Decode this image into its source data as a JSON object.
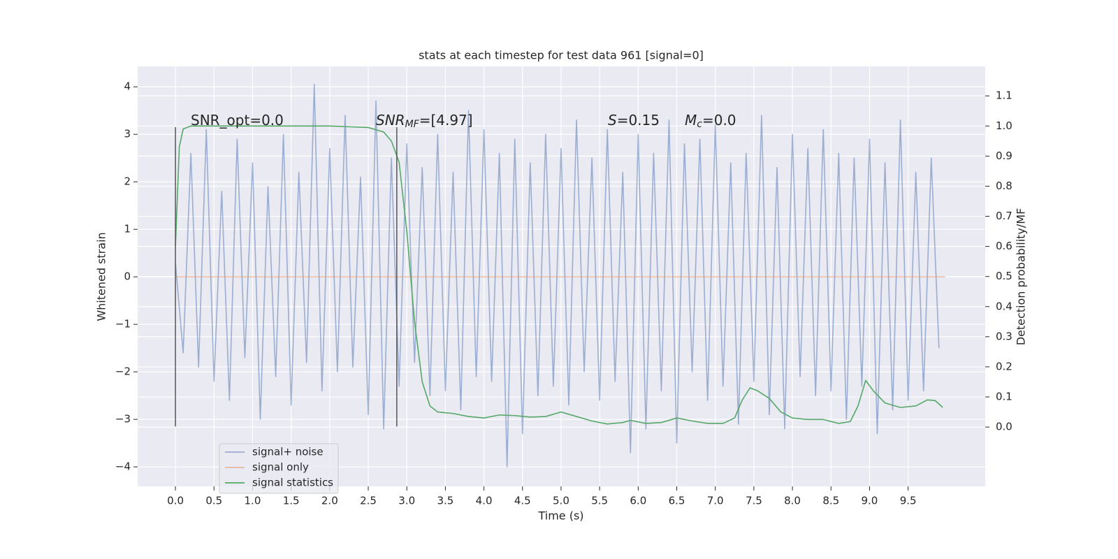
{
  "chart_data": {
    "type": "line",
    "title": "stats at each timestep for test data 961 [signal=0]",
    "xlabel": "Time (s)",
    "ylabel": "Whitened strain",
    "y2label": "Detection probability/MF",
    "xlim": [
      -0.49,
      10.5
    ],
    "ylim": [
      -4.41,
      4.43
    ],
    "y2lim": [
      -0.197,
      1.198
    ],
    "xticks": [
      {
        "value": 0,
        "label": "0.0"
      },
      0.5,
      {
        "value": 1,
        "label": "1.0"
      },
      1.5,
      {
        "value": 2,
        "label": "2.0"
      },
      2.5,
      {
        "value": 3,
        "label": "3.0"
      },
      3.5,
      {
        "value": 4,
        "label": "4.0"
      },
      4.5,
      {
        "value": 5,
        "label": "5.0"
      },
      5.5,
      {
        "value": 6,
        "label": "6.0"
      },
      6.5,
      {
        "value": 7,
        "label": "7.0"
      },
      7.5,
      {
        "value": 8,
        "label": "8.0"
      },
      8.5,
      {
        "value": 9,
        "label": "9.0"
      },
      9.5
    ],
    "yticks": [
      {
        "value": -4,
        "label": "−4"
      },
      {
        "value": -3,
        "label": "−3"
      },
      {
        "value": -2,
        "label": "−2"
      },
      {
        "value": -1,
        "label": "−1"
      },
      0,
      1,
      2,
      3,
      4
    ],
    "y2ticks": [
      {
        "value": 0,
        "label": "0.0"
      },
      0.1,
      0.2,
      0.3,
      0.4,
      0.5,
      0.6,
      0.7,
      0.8,
      0.9,
      {
        "value": 1,
        "label": "1.0"
      },
      1.1
    ],
    "grid": true,
    "legend": "lower left",
    "series": [
      {
        "name": "signal+ noise",
        "color": "#4c72b0",
        "opacity": 0.5,
        "x": [
          0,
          0.1,
          0.2,
          0.3,
          0.4,
          0.5,
          0.6,
          0.7,
          0.8,
          0.9,
          1,
          1.1,
          1.2,
          1.3,
          1.4,
          1.5,
          1.6,
          1.7,
          1.8,
          1.9,
          2,
          2.1,
          2.2,
          2.3,
          2.4,
          2.5,
          2.6,
          2.7,
          2.8,
          2.9,
          3,
          3.1,
          3.2,
          3.3,
          3.4,
          3.5,
          3.6,
          3.7,
          3.8,
          3.9,
          4,
          4.1,
          4.2,
          4.3,
          4.4,
          4.5,
          4.6,
          4.7,
          4.8,
          4.9,
          5,
          5.1,
          5.2,
          5.3,
          5.4,
          5.5,
          5.6,
          5.7,
          5.8,
          5.9,
          6,
          6.1,
          6.2,
          6.3,
          6.4,
          6.5,
          6.6,
          6.7,
          6.8,
          6.9,
          7,
          7.1,
          7.2,
          7.3,
          7.4,
          7.5,
          7.6,
          7.7,
          7.8,
          7.9,
          8,
          8.1,
          8.2,
          8.3,
          8.4,
          8.5,
          8.6,
          8.7,
          8.8,
          8.9,
          9,
          9.1,
          9.2,
          9.3,
          9.4,
          9.5,
          9.6,
          9.7,
          9.8,
          9.9
        ],
        "values": [
          0.3,
          -1.6,
          2.6,
          -1.9,
          3.1,
          -2.2,
          1.8,
          -2.6,
          2.9,
          -1.7,
          2.4,
          -3.0,
          1.9,
          -2.1,
          3.0,
          -2.7,
          2.2,
          -1.8,
          4.05,
          -2.4,
          2.7,
          -2.0,
          3.4,
          -1.9,
          2.1,
          -2.9,
          3.7,
          -3.2,
          2.5,
          -2.3,
          2.8,
          -1.8,
          2.3,
          -2.5,
          3.0,
          -2.4,
          2.2,
          -2.8,
          3.5,
          -2.1,
          3.1,
          -2.2,
          2.6,
          -4.0,
          2.9,
          -3.3,
          2.4,
          -2.5,
          3.0,
          -2.3,
          2.7,
          -2.7,
          3.3,
          -2.0,
          2.5,
          -2.6,
          3.1,
          -2.2,
          2.2,
          -3.7,
          3.0,
          -3.2,
          2.6,
          -2.4,
          3.3,
          -3.5,
          2.8,
          -2.0,
          2.9,
          -2.6,
          3.2,
          -2.3,
          2.4,
          -3.1,
          2.6,
          -2.2,
          3.4,
          -2.9,
          2.3,
          -3.2,
          3.0,
          -2.1,
          2.7,
          -2.5,
          3.1,
          -2.4,
          2.6,
          -3.0,
          2.5,
          -2.3,
          2.9,
          -3.3,
          2.4,
          -2.8,
          3.3,
          -2.6,
          2.2,
          -2.4,
          2.5,
          -1.5
        ]
      },
      {
        "name": "signal only",
        "color": "#dd8452",
        "opacity": 0.5,
        "x": [
          0,
          9.98
        ],
        "values": [
          0,
          0
        ]
      },
      {
        "name": "signal statistics",
        "color": "#55a868",
        "opacity": 1,
        "axis": "y2",
        "x": [
          0,
          0.05,
          0.1,
          0.2,
          1,
          2,
          2.5,
          2.7,
          2.8,
          2.9,
          3.0,
          3.1,
          3.2,
          3.3,
          3.4,
          3.6,
          3.8,
          4.0,
          4.2,
          4.4,
          4.6,
          4.8,
          5.0,
          5.2,
          5.4,
          5.6,
          5.8,
          5.9,
          6.1,
          6.3,
          6.5,
          6.7,
          6.9,
          7.1,
          7.25,
          7.35,
          7.45,
          7.55,
          7.7,
          7.85,
          8.0,
          8.2,
          8.4,
          8.6,
          8.75,
          8.85,
          8.95,
          9.05,
          9.2,
          9.4,
          9.6,
          9.75,
          9.85,
          9.95
        ],
        "values": [
          0.6,
          0.93,
          0.99,
          1.0,
          1.0,
          1.0,
          0.995,
          0.98,
          0.95,
          0.88,
          0.65,
          0.35,
          0.15,
          0.07,
          0.05,
          0.045,
          0.035,
          0.03,
          0.04,
          0.038,
          0.033,
          0.035,
          0.05,
          0.035,
          0.02,
          0.01,
          0.015,
          0.022,
          0.012,
          0.015,
          0.03,
          0.02,
          0.012,
          0.012,
          0.03,
          0.09,
          0.13,
          0.12,
          0.095,
          0.05,
          0.03,
          0.025,
          0.025,
          0.012,
          0.018,
          0.07,
          0.155,
          0.12,
          0.08,
          0.065,
          0.07,
          0.09,
          0.088,
          0.065
        ]
      }
    ],
    "vlines": {
      "x": [
        0,
        2.87
      ],
      "ymin": -3.15,
      "ymax": 3.15,
      "color": "#555555"
    },
    "annotations": [
      {
        "parts": [
          {
            "text": "SNR_opt=0.0",
            "style": "normal"
          }
        ]
      },
      {
        "parts": [
          {
            "text": "SNR",
            "style": "italic"
          },
          {
            "text": "MF",
            "style": "italic-sub"
          },
          {
            "text": "=[4.97]",
            "style": "normal"
          }
        ]
      },
      {
        "parts": [
          {
            "text": "S",
            "style": "italic"
          },
          {
            "text": "=0.15",
            "style": "normal"
          }
        ]
      },
      {
        "parts": [
          {
            "text": "M",
            "style": "italic"
          },
          {
            "text": "c",
            "style": "italic-sub"
          },
          {
            "text": "=0.0",
            "style": "normal"
          }
        ]
      }
    ]
  }
}
